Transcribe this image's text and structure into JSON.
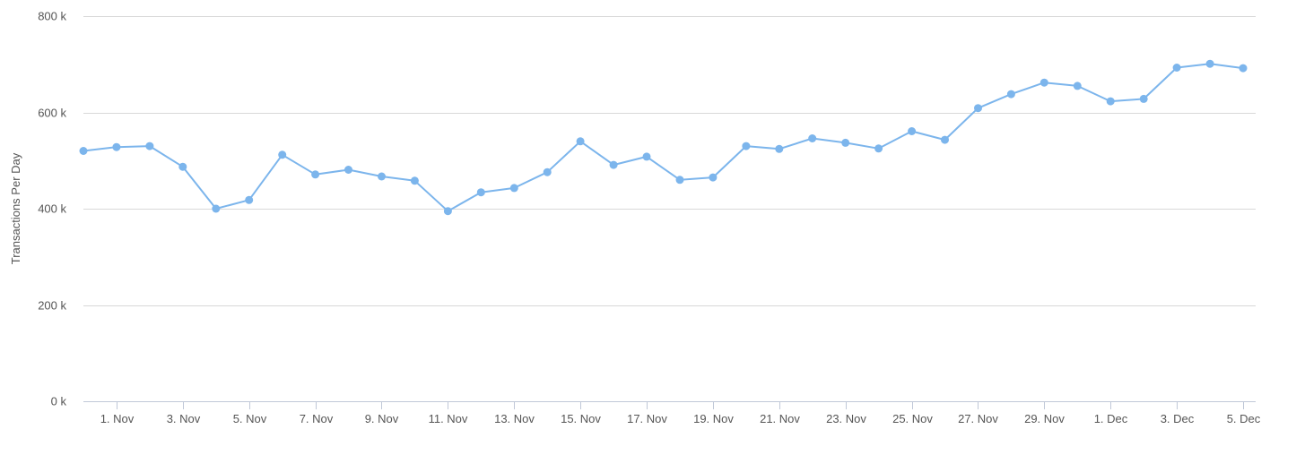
{
  "chart_data": {
    "type": "line",
    "title": "",
    "xlabel": "",
    "ylabel": "Transactions Per Day",
    "ylim": [
      0,
      800000
    ],
    "yticks": [
      {
        "value": 0,
        "label": "0 k"
      },
      {
        "value": 200000,
        "label": "200 k"
      },
      {
        "value": 400000,
        "label": "400 k"
      },
      {
        "value": 600000,
        "label": "600 k"
      },
      {
        "value": 800000,
        "label": "800 k"
      }
    ],
    "xlim": [
      "2023-10-31",
      "2023-12-05"
    ],
    "xticks": [
      {
        "value": "2023-11-01",
        "label": "1. Nov"
      },
      {
        "value": "2023-11-03",
        "label": "3. Nov"
      },
      {
        "value": "2023-11-05",
        "label": "5. Nov"
      },
      {
        "value": "2023-11-07",
        "label": "7. Nov"
      },
      {
        "value": "2023-11-09",
        "label": "9. Nov"
      },
      {
        "value": "2023-11-11",
        "label": "11. Nov"
      },
      {
        "value": "2023-11-13",
        "label": "13. Nov"
      },
      {
        "value": "2023-11-15",
        "label": "15. Nov"
      },
      {
        "value": "2023-11-17",
        "label": "17. Nov"
      },
      {
        "value": "2023-11-19",
        "label": "19. Nov"
      },
      {
        "value": "2023-11-21",
        "label": "21. Nov"
      },
      {
        "value": "2023-11-23",
        "label": "23. Nov"
      },
      {
        "value": "2023-11-25",
        "label": "25. Nov"
      },
      {
        "value": "2023-11-27",
        "label": "27. Nov"
      },
      {
        "value": "2023-11-29",
        "label": "29. Nov"
      },
      {
        "value": "2023-12-01",
        "label": "1. Dec"
      },
      {
        "value": "2023-12-03",
        "label": "3. Dec"
      },
      {
        "value": "2023-12-05",
        "label": "5. Dec"
      }
    ],
    "grid": true,
    "legend": "none",
    "series": [
      {
        "color": "#7cb5ec",
        "x": [
          "2023-10-31",
          "2023-11-01",
          "2023-11-02",
          "2023-11-03",
          "2023-11-04",
          "2023-11-05",
          "2023-11-06",
          "2023-11-07",
          "2023-11-08",
          "2023-11-09",
          "2023-11-10",
          "2023-11-11",
          "2023-11-12",
          "2023-11-13",
          "2023-11-14",
          "2023-11-15",
          "2023-11-16",
          "2023-11-17",
          "2023-11-18",
          "2023-11-19",
          "2023-11-20",
          "2023-11-21",
          "2023-11-22",
          "2023-11-23",
          "2023-11-24",
          "2023-11-25",
          "2023-11-26",
          "2023-11-27",
          "2023-11-28",
          "2023-11-29",
          "2023-11-30",
          "2023-12-01",
          "2023-12-02",
          "2023-12-03",
          "2023-12-04",
          "2023-12-05"
        ],
        "values": [
          520000,
          528000,
          530000,
          487000,
          400000,
          418000,
          512000,
          471000,
          481000,
          467000,
          458000,
          395000,
          434000,
          443000,
          476000,
          540000,
          491000,
          508000,
          460000,
          465000,
          530000,
          524000,
          546000,
          537000,
          525000,
          561000,
          543000,
          609000,
          638000,
          662000,
          655000,
          623000,
          628000,
          693000,
          701000,
          692000
        ]
      }
    ]
  }
}
